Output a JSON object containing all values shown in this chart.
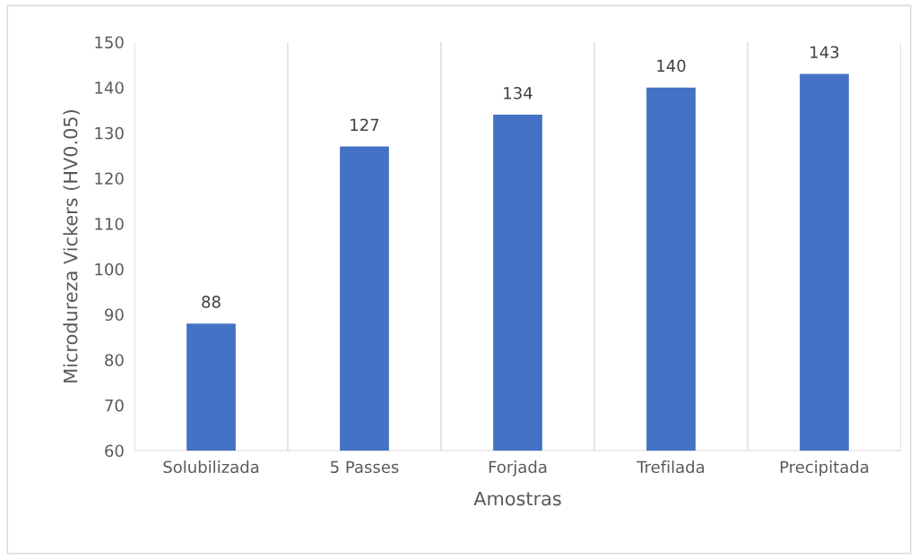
{
  "chart_data": {
    "type": "bar",
    "xlabel": "Amostras",
    "ylabel": "Microdureza Vickers (HV0.05)",
    "categories": [
      "Solubilizada",
      "5 Passes",
      "Forjada",
      "Trefilada",
      "Precipitada"
    ],
    "values": [
      88,
      127,
      134,
      140,
      143
    ],
    "color": "#4472c4",
    "ylim": [
      60,
      150
    ],
    "yticks": [
      60,
      70,
      80,
      90,
      100,
      110,
      120,
      130,
      140,
      150
    ],
    "grid": "x",
    "data_labels": true
  }
}
